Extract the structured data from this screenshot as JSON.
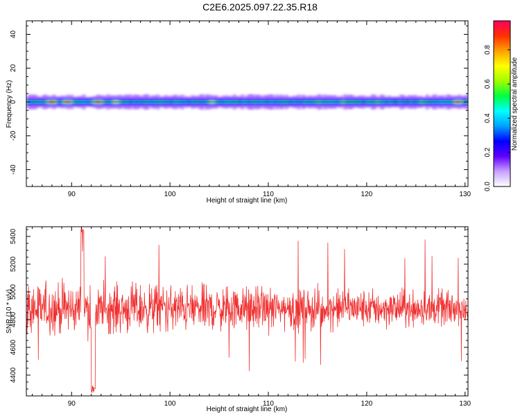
{
  "title": "C2E6.2025.097.22.35.R18",
  "chart_data": [
    {
      "type": "heatmap",
      "xlabel": "Height of straight line (km)",
      "ylabel": "Frequency (Hz)",
      "xlim": [
        85.4,
        130.3
      ],
      "ylim": [
        -50,
        48
      ],
      "x_ticks": [
        "90",
        "100",
        "110",
        "120",
        "130"
      ],
      "y_ticks": [
        "40",
        "20",
        "0",
        "-20",
        "-40"
      ],
      "colorbar": {
        "label": "Normalized spectral amplitude",
        "range": [
          0.0,
          0.97
        ],
        "ticks": [
          "0.0",
          "0.2",
          "0.4",
          "0.6",
          "0.8"
        ],
        "colors": [
          "#ffffff",
          "#c8a0ff",
          "#6000ff",
          "#0000ff",
          "#00a0ff",
          "#00ffff",
          "#00ff40",
          "#a0ff00",
          "#ffff00",
          "#ffa000",
          "#ff3000",
          "#ff0060"
        ]
      },
      "band": {
        "center_hz": 0,
        "core_halfwidth_hz": 1.2,
        "halo_halfwidth_hz": 3.5
      },
      "peaks": [
        {
          "x": 87.9,
          "amplitude": 0.95
        },
        {
          "x": 89.5,
          "amplitude": 0.9
        },
        {
          "x": 92.6,
          "amplitude": 0.95
        },
        {
          "x": 94.4,
          "amplitude": 0.75
        },
        {
          "x": 104.2,
          "amplitude": 0.7
        },
        {
          "x": 115.0,
          "amplitude": 0.6
        },
        {
          "x": 117.5,
          "amplitude": 0.62
        },
        {
          "x": 121.0,
          "amplitude": 0.6
        },
        {
          "x": 125.5,
          "amplitude": 0.6
        },
        {
          "x": 129.2,
          "amplitude": 0.9
        }
      ]
    },
    {
      "type": "line",
      "xlabel": "Height of straight line (km)",
      "ylabel": "SNR (10 * v/v)",
      "xlim": [
        85.4,
        130.3
      ],
      "ylim": [
        4250,
        5470
      ],
      "x_ticks": [
        "90",
        "100",
        "110",
        "120",
        "130"
      ],
      "y_ticks": [
        "4400",
        "4600",
        "4800",
        "5000",
        "5200",
        "5400"
      ],
      "series_color": "#f03030",
      "samples": 1400,
      "mean_snr": 4880,
      "spread_start": 140,
      "spread_end": 90,
      "max_snr": 5460,
      "min_snr": 4270
    }
  ]
}
